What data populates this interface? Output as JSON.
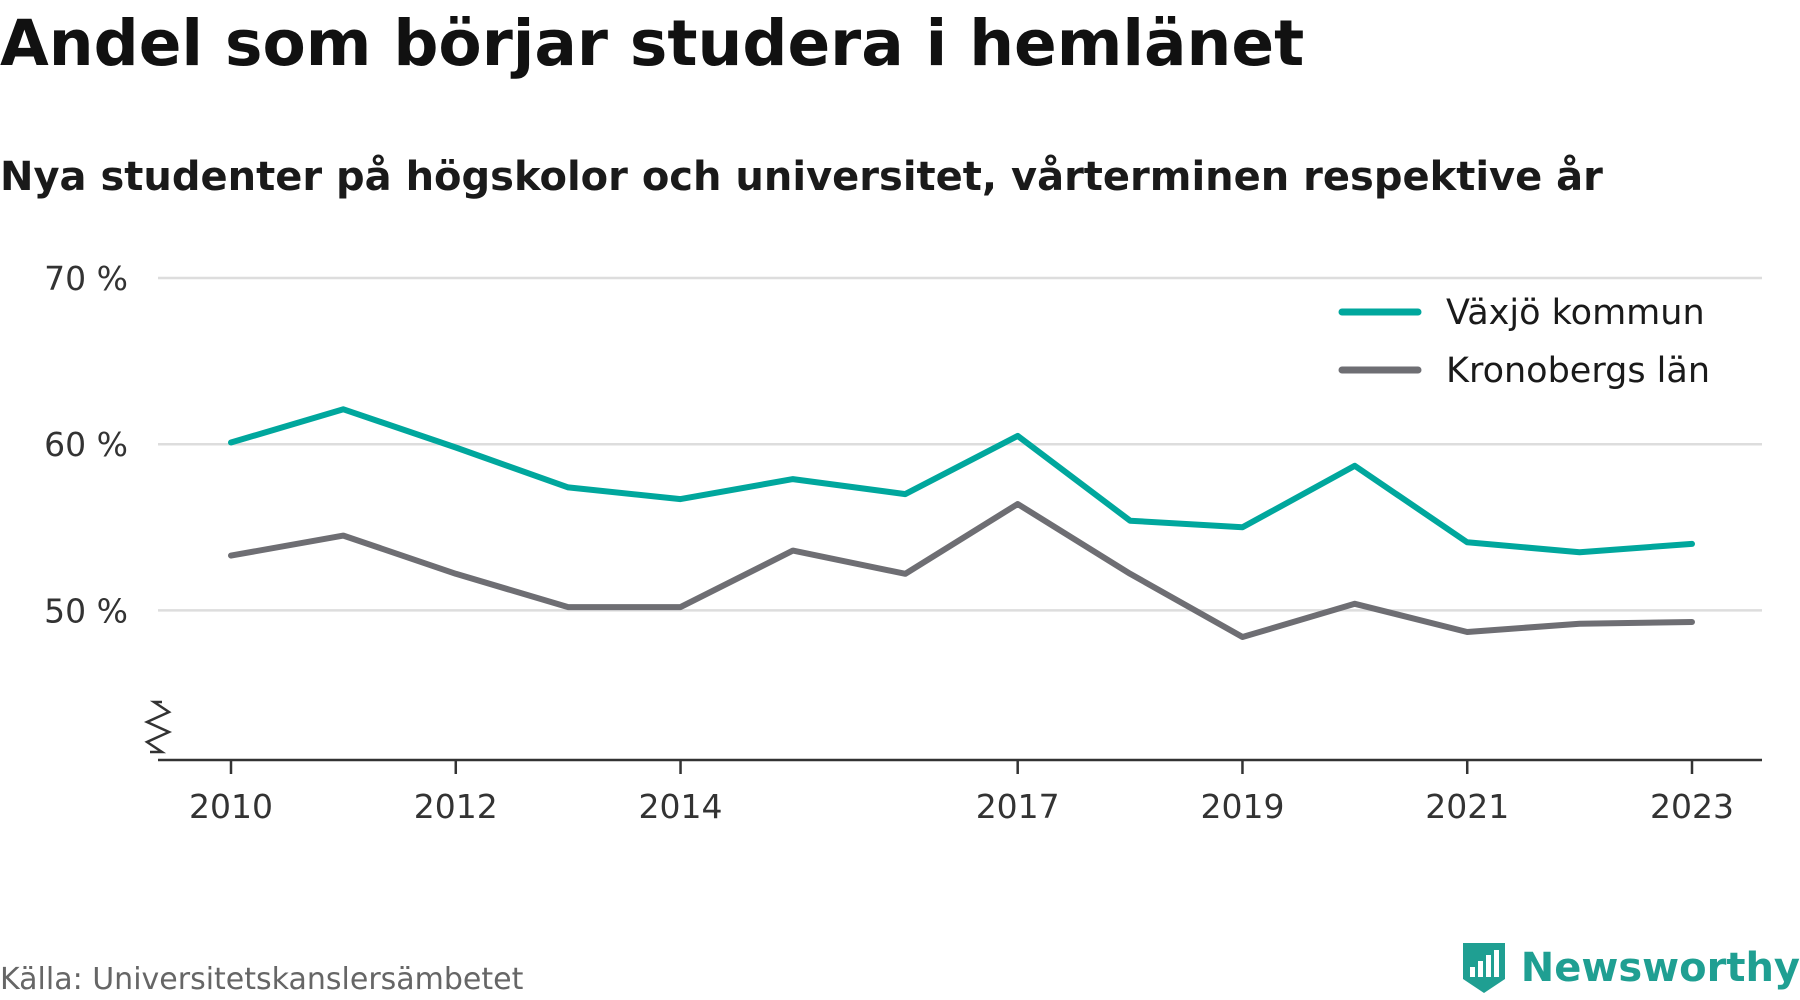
{
  "title": "Andel som börjar studera i hemlänet",
  "subtitle": "Nya studenter på högskolor och universitet, vårterminen respektive år",
  "source": "Källa: Universitetskanslersämbetet",
  "brand": {
    "name": "Newsworthy",
    "logo_icon": "newsworthy-logo-icon",
    "color": "#1f9f92"
  },
  "colors": {
    "growth_line": "#00a79d",
    "county_line": "#6e6e73",
    "grid": "#dddddd",
    "axis": "#333333"
  },
  "chart_data": {
    "type": "line",
    "x": [
      2010,
      2011,
      2012,
      2013,
      2014,
      2015,
      2016,
      2017,
      2018,
      2019,
      2020,
      2021,
      2022,
      2023
    ],
    "x_ticks": [
      2010,
      2012,
      2014,
      2017,
      2019,
      2021,
      2023
    ],
    "x_tick_labels": [
      "2010",
      "2012",
      "2014",
      "2017",
      "2019",
      "2021",
      "2023"
    ],
    "y_ticks": [
      50,
      60,
      70
    ],
    "y_tick_labels": [
      "50 %",
      "60 %",
      "70 %"
    ],
    "ylim": [
      41,
      70
    ],
    "y_axis_break": true,
    "grid": "horizontal",
    "legend_position": "top-right",
    "series": [
      {
        "name": "Växjö kommun",
        "color": "#00a79d",
        "values": [
          60.1,
          62.1,
          59.8,
          57.4,
          56.7,
          57.9,
          57.0,
          60.5,
          55.4,
          55.0,
          58.7,
          54.1,
          53.5,
          54.0
        ]
      },
      {
        "name": "Kronobergs län",
        "color": "#6e6e73",
        "values": [
          53.3,
          54.5,
          52.2,
          50.2,
          50.2,
          53.6,
          52.2,
          56.4,
          52.2,
          48.4,
          50.4,
          48.7,
          49.2,
          49.3
        ]
      }
    ]
  }
}
